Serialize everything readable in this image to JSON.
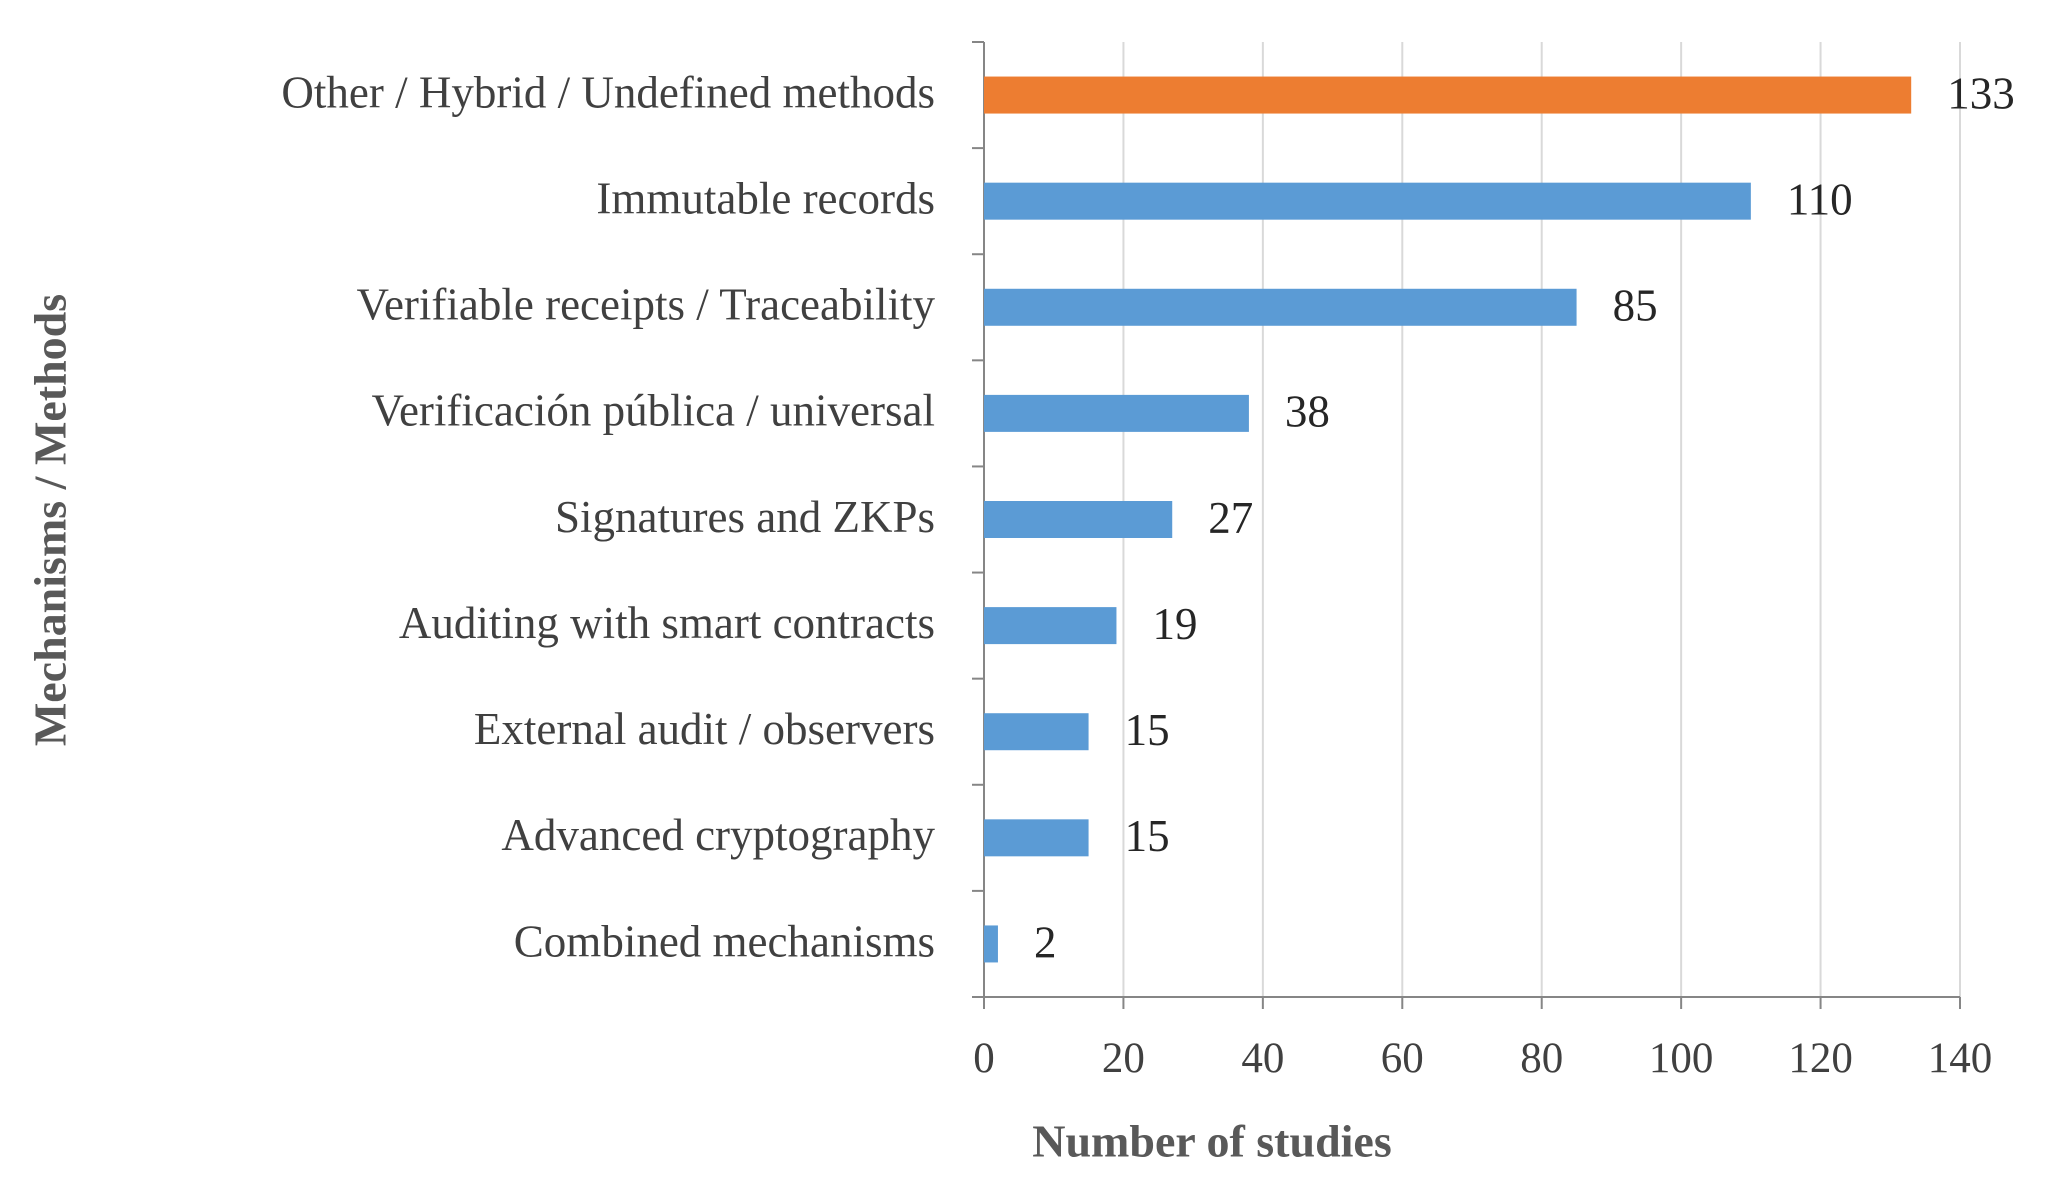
{
  "chart_data": {
    "type": "hbar",
    "categories": [
      "Other / Hybrid / Undefined methods",
      "Immutable records",
      "Verifiable receipts / Traceability",
      "Verificación pública / universal",
      "Signatures and ZKPs",
      "Auditing with smart contracts",
      "External audit / observers",
      "Advanced cryptography",
      "Combined mechanisms"
    ],
    "values": [
      133,
      110,
      85,
      38,
      27,
      19,
      15,
      15,
      2
    ],
    "colors": [
      "#ed7d31",
      "#5b9bd5",
      "#5b9bd5",
      "#5b9bd5",
      "#5b9bd5",
      "#5b9bd5",
      "#5b9bd5",
      "#5b9bd5",
      "#5b9bd5"
    ],
    "xlim": [
      0,
      140
    ],
    "xticks": [
      0,
      20,
      40,
      60,
      80,
      100,
      120,
      140
    ],
    "grid": true,
    "x_label": "Number of studies",
    "y_label": "Mechanisms / Methods"
  }
}
